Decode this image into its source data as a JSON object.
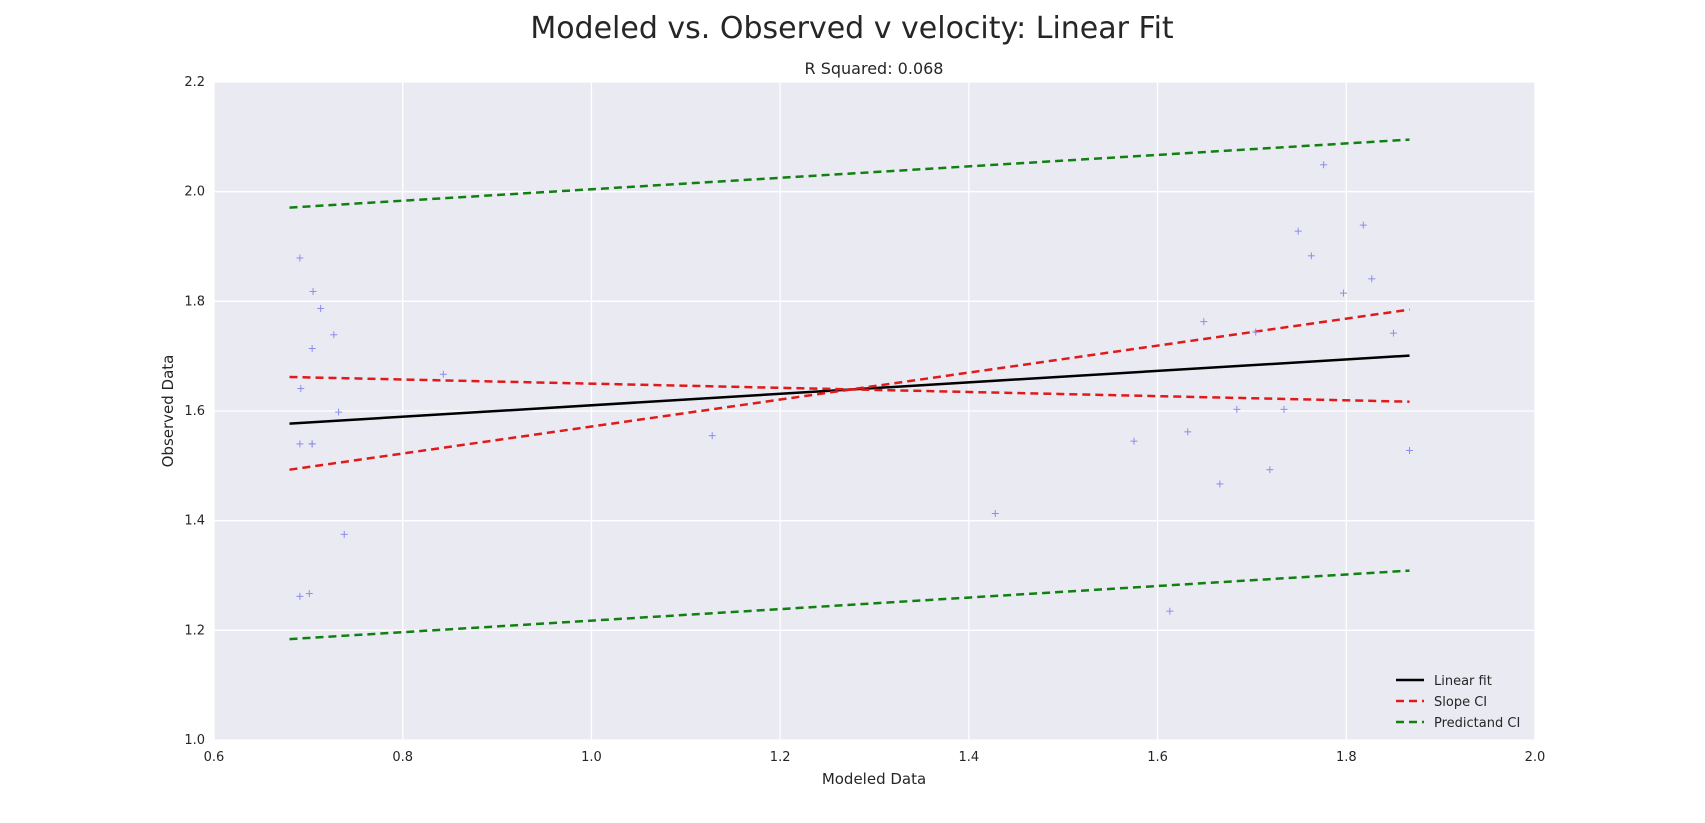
{
  "chart_data": {
    "type": "scatter",
    "title": "Modeled vs. Observed v velocity: Linear Fit",
    "subtitle": "R Squared: 0.068",
    "xlabel": "Modeled Data",
    "ylabel": "Observed Data",
    "xlim": [
      0.6,
      2.0
    ],
    "ylim": [
      1.0,
      2.2
    ],
    "xticks": [
      0.6,
      0.8,
      1.0,
      1.2,
      1.4,
      1.6,
      1.8,
      2.0
    ],
    "xtick_labels": [
      "0.6",
      "0.8",
      "1.0",
      "1.2",
      "1.4",
      "1.6",
      "1.8",
      "2.0"
    ],
    "yticks": [
      1.0,
      1.2,
      1.4,
      1.6,
      1.8,
      2.0,
      2.2
    ],
    "ytick_labels": [
      "1.0",
      "1.2",
      "1.4",
      "1.6",
      "1.8",
      "2.0",
      "2.2"
    ],
    "grid": true,
    "background": "#eaeaf2",
    "legend_position": "bottom-right",
    "points": {
      "color": "#8c8cf0",
      "marker": "+",
      "x": [
        0.691,
        0.705,
        0.713,
        0.704,
        0.727,
        0.704,
        0.692,
        0.732,
        0.691,
        0.704,
        0.738,
        0.691,
        0.701,
        0.843,
        1.128,
        1.428,
        1.575,
        1.613,
        1.632,
        1.649,
        1.666,
        1.684,
        1.704,
        1.719,
        1.734,
        1.749,
        1.763,
        1.776,
        1.797,
        1.818,
        1.827,
        1.85,
        1.867
      ],
      "y": [
        1.879,
        1.818,
        1.787,
        1.714,
        1.739,
        1.54,
        1.641,
        1.598,
        1.54,
        1.54,
        1.375,
        1.262,
        1.267,
        1.667,
        1.555,
        1.413,
        1.545,
        1.235,
        1.562,
        1.763,
        1.467,
        1.603,
        1.744,
        1.493,
        1.603,
        1.928,
        1.883,
        2.049,
        1.815,
        1.939,
        1.841,
        1.742,
        1.528
      ]
    },
    "series": [
      {
        "name": "Linear fit",
        "color": "#000000",
        "dash": "solid",
        "x": [
          0.68,
          1.867
        ],
        "y": [
          1.577,
          1.701
        ]
      },
      {
        "name": "Slope CI",
        "color": "#e01a1a",
        "dash": "dashed",
        "x": [
          0.68,
          1.867
        ],
        "y": [
          1.662,
          1.617
        ]
      },
      {
        "name": "Slope CI",
        "color": "#e01a1a",
        "dash": "dashed",
        "legend": false,
        "x": [
          0.68,
          1.867
        ],
        "y": [
          1.493,
          1.785
        ]
      },
      {
        "name": "Predictand CI",
        "color": "#108010",
        "dash": "dashed",
        "x": [
          0.68,
          1.867
        ],
        "y": [
          1.971,
          2.095
        ]
      },
      {
        "name": "Predictand CI",
        "color": "#108010",
        "dash": "dashed",
        "legend": false,
        "x": [
          0.68,
          1.867
        ],
        "y": [
          1.184,
          1.309
        ]
      }
    ]
  }
}
